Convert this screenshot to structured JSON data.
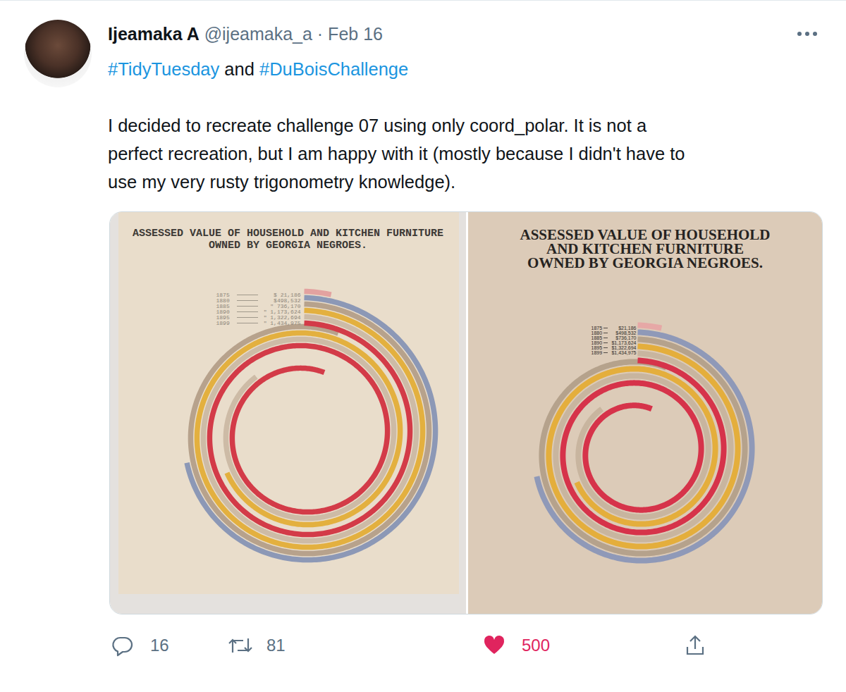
{
  "tweet": {
    "author": "Ijeamaka A",
    "handle": "@ijeamaka_a",
    "separator": "·",
    "date": "Feb 16",
    "hashtag_line": [
      "#TidyTuesday",
      " and ",
      "#DuBoisChallenge"
    ],
    "text_lines": [
      "I decided to recreate challenge 07 using only coord_polar. It is not a",
      "perfect recreation, but I am happy with it (mostly because I didn't have to",
      "use my very rusty trigonometry knowledge)."
    ],
    "replies": 16,
    "retweets": 81,
    "likes": 500
  },
  "chart_data": [
    {
      "type": "spiral",
      "title": "ASSESSED VALUE OF HOUSEHOLD AND KITCHEN FURNITURE\nOWNED BY GEORGIA NEGROES.",
      "categories": [
        "1875",
        "1880",
        "1885",
        "1890",
        "1895",
        "1899"
      ],
      "values": [
        21186,
        498532,
        736170,
        1173624,
        1322694,
        1434975
      ],
      "value_labels": [
        "$ 21,186",
        "$498,532",
        "\" 736,170",
        "\" 1,173,624",
        "\" 1,322,694",
        "\" 1,434,975"
      ],
      "colors": [
        "#e3a2a0",
        "#8c98b6",
        "#b7a28c",
        "#e3b03f",
        "#cdbba6",
        "#d33b48"
      ]
    },
    {
      "type": "spiral",
      "title": "ASSESSED VALUE OF HOUSEHOLD\nAND KITCHEN FURNITURE\nOWNED BY GEORGIA NEGROES.",
      "categories": [
        "1875",
        "1880",
        "1885",
        "1890",
        "1895",
        "1899"
      ],
      "values": [
        21186,
        498532,
        736170,
        1173624,
        1322694,
        1434975
      ],
      "value_labels": [
        "$21,186",
        "$498,532",
        "$736,170",
        "$1,173,624",
        "$1,322,694",
        "$1,434,975"
      ],
      "colors": [
        "#e6a8a6",
        "#8f99b8",
        "#b5a28c",
        "#e4ae3c",
        "#c8b59f",
        "#d6334a"
      ]
    }
  ]
}
